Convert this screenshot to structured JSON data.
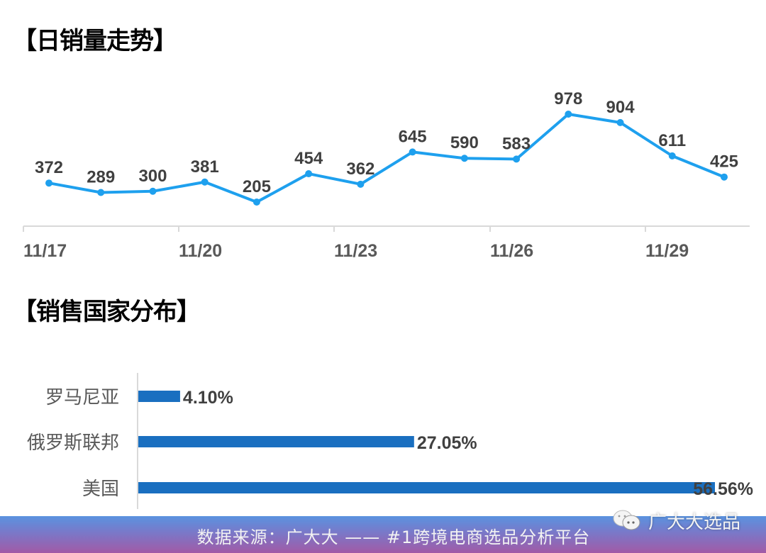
{
  "sections": {
    "daily_sales_title": "【日销量走势】",
    "country_dist_title": "【销售国家分布】"
  },
  "footer": {
    "text": "数据来源：广大大 —— #1跨境电商选品分析平台"
  },
  "watermark": {
    "icon": "wechat-icon",
    "text": "广大大选品"
  },
  "colors": {
    "line": "#1ea0ee",
    "bar": "#1a6fc0",
    "footer_top": "#5a93e0",
    "footer_bottom": "#a25aa6"
  },
  "chart_data": [
    {
      "type": "line",
      "title": "【日销量走势】",
      "xlabel": "",
      "ylabel": "",
      "x": [
        "11/17",
        "11/18",
        "11/19",
        "11/20",
        "11/21",
        "11/22",
        "11/23",
        "11/24",
        "11/25",
        "11/26",
        "11/27",
        "11/28",
        "11/29",
        "11/30"
      ],
      "tick_labels": [
        "11/17",
        "11/20",
        "11/23",
        "11/26",
        "11/29"
      ],
      "series": [
        {
          "name": "日销量",
          "values": [
            372,
            289,
            300,
            381,
            205,
            454,
            362,
            645,
            590,
            583,
            978,
            904,
            611,
            425
          ]
        }
      ],
      "data_labels": true,
      "grid": false,
      "legend": "none"
    },
    {
      "type": "bar",
      "orientation": "horizontal",
      "title": "【销售国家分布】",
      "categories": [
        "罗马尼亚",
        "俄罗斯联邦",
        "美国"
      ],
      "values": [
        4.1,
        27.05,
        56.56
      ],
      "value_labels": [
        "4.10%",
        "27.05%",
        "56.56%"
      ],
      "unit": "%",
      "grid": false,
      "legend": "none"
    }
  ]
}
